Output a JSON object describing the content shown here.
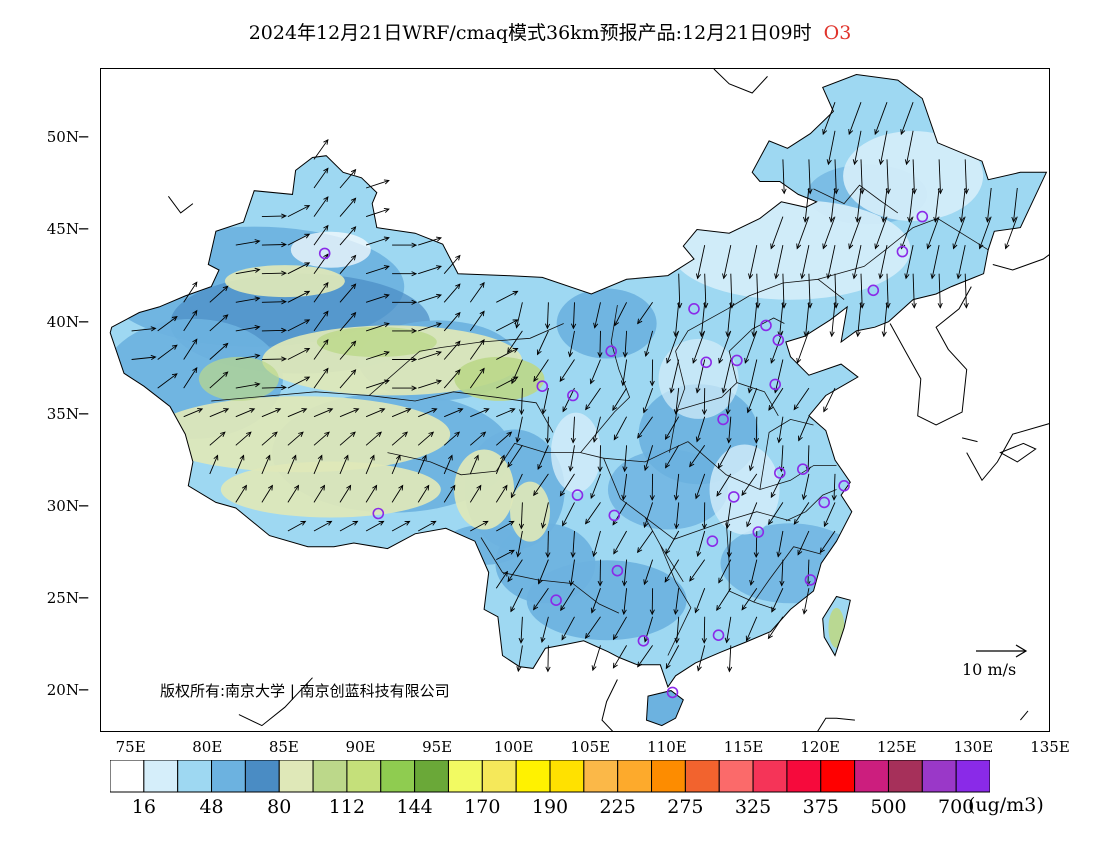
{
  "title": {
    "text": "2024年12月21日WRF/cmaq模式36km预报产品:12月21日09时",
    "species": "O3"
  },
  "axes": {
    "lat_labels": [
      "50N",
      "45N",
      "40N",
      "35N",
      "30N",
      "25N",
      "20N"
    ],
    "lon_labels": [
      "75E",
      "80E",
      "85E",
      "90E",
      "95E",
      "100E",
      "105E",
      "110E",
      "115E",
      "120E",
      "125E",
      "130E",
      "135E"
    ]
  },
  "copyright": "版权所有:南京大学 | 南京创蓝科技有限公司",
  "ref_vector": "10 m/s",
  "legend": {
    "colors": [
      "#ffffff",
      "#d5eefa",
      "#9ed8f2",
      "#6cb2e0",
      "#4a8cc4",
      "#dfe8b8",
      "#bcd88a",
      "#c5e07a",
      "#8fcc50",
      "#6aa838",
      "#f2fa62",
      "#f5e85a",
      "#fff200",
      "#ffe100",
      "#fbb848",
      "#fdaa2c",
      "#fd8c00",
      "#f2632e",
      "#fb6a6a",
      "#f53458",
      "#f60a3c",
      "#ff0000",
      "#cc1e7e",
      "#a6305a",
      "#9a38c8",
      "#8a2ae8"
    ],
    "labels": [
      "16",
      "48",
      "80",
      "112",
      "144",
      "170",
      "190",
      "225",
      "275",
      "325",
      "375",
      "500",
      "700"
    ],
    "unit": "(ug/m3)"
  },
  "palette": {
    "land_low": "#d5eefa",
    "land_mid": "#9ed8f2",
    "land_high": "#6cb2e0",
    "land_deep": "#4a8cc4",
    "plateau": "#dfe8b8",
    "plateau_dark": "#bcd88a",
    "station": "#8a2ae8",
    "title_species": "#e0342c"
  },
  "stations": [
    [
      87.6,
      43.8
    ],
    [
      91.1,
      29.7
    ],
    [
      101.8,
      36.6
    ],
    [
      103.8,
      36.1
    ],
    [
      104.1,
      30.7
    ],
    [
      106.3,
      38.5
    ],
    [
      106.5,
      29.6
    ],
    [
      106.7,
      26.6
    ],
    [
      102.7,
      25.0
    ],
    [
      108.4,
      22.8
    ],
    [
      110.3,
      20.0
    ],
    [
      111.7,
      40.8
    ],
    [
      112.5,
      37.9
    ],
    [
      113.6,
      34.8
    ],
    [
      112.9,
      28.2
    ],
    [
      114.3,
      30.6
    ],
    [
      113.3,
      23.1
    ],
    [
      114.5,
      38.0
    ],
    [
      116.4,
      39.9
    ],
    [
      117.2,
      39.1
    ],
    [
      117.0,
      36.7
    ],
    [
      117.3,
      31.9
    ],
    [
      118.8,
      32.1
    ],
    [
      120.2,
      30.3
    ],
    [
      121.5,
      31.2
    ],
    [
      115.9,
      28.7
    ],
    [
      119.3,
      26.1
    ],
    [
      123.4,
      41.8
    ],
    [
      125.3,
      43.9
    ],
    [
      126.6,
      45.8
    ]
  ]
}
